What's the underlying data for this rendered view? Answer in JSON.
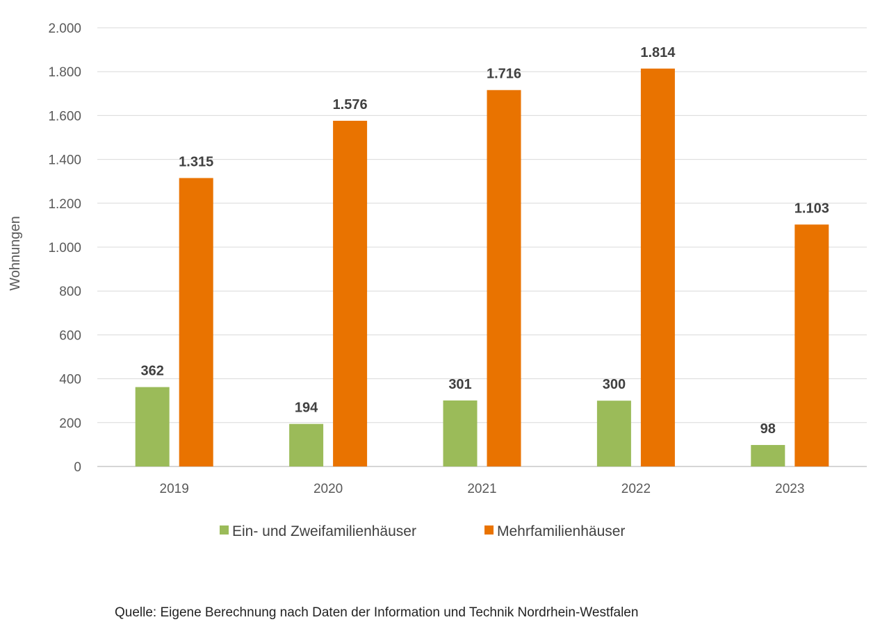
{
  "chart_data": {
    "type": "bar",
    "categories": [
      "2019",
      "2020",
      "2021",
      "2022",
      "2023"
    ],
    "series": [
      {
        "name": "Ein- und Zweifamilienhäuser",
        "values": [
          362,
          194,
          301,
          300,
          98
        ],
        "color": "#9bbb59"
      },
      {
        "name": "Mehrfamilienhäuser",
        "values": [
          1315,
          1576,
          1716,
          1814,
          1103
        ],
        "color": "#e97300"
      }
    ],
    "data_labels": [
      [
        "362",
        "194",
        "301",
        "300",
        "98"
      ],
      [
        "1.315",
        "1.576",
        "1.716",
        "1.814",
        "1.103"
      ]
    ],
    "ylabel": "Wohnungen",
    "ylim": [
      0,
      2000
    ],
    "yticks": [
      0,
      200,
      400,
      600,
      800,
      1000,
      1200,
      1400,
      1600,
      1800,
      2000
    ],
    "ytick_labels": [
      "0",
      "200",
      "400",
      "600",
      "800",
      "1.000",
      "1.200",
      "1.400",
      "1.600",
      "1.800",
      "2.000"
    ],
    "grid": true,
    "legend_position": "bottom"
  },
  "source_note": "Quelle: Eigene Berechnung nach Daten der Information und Technik Nordrhein-Westfalen"
}
